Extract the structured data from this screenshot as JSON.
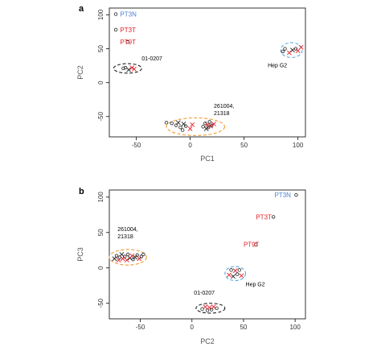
{
  "colors": {
    "black": "#222222",
    "red": "#e8202a",
    "blue": "#4a7fd4",
    "ellipse_black": "#222222",
    "ellipse_orange": "#f39a2e",
    "ellipse_blue": "#5aa9e0"
  },
  "chart_data": [
    {
      "panel": "a",
      "type": "scatter",
      "xlabel": "PC1",
      "ylabel": "PC2",
      "xlim": [
        -75,
        107
      ],
      "ylim": [
        -80,
        110
      ],
      "xticks": [
        -50,
        0,
        50,
        100
      ],
      "yticks": [
        -50,
        0,
        50,
        100
      ],
      "labels": [
        {
          "text": "PT3N",
          "x": -65,
          "y": 101,
          "color": "blue"
        },
        {
          "text": "PT3T",
          "x": -65,
          "y": 78,
          "color": "red"
        },
        {
          "text": "PT9T",
          "x": -65,
          "y": 60,
          "color": "red"
        }
      ],
      "annotations": [
        {
          "lines": [
            "01-0207"
          ],
          "x": -45,
          "y": 33
        },
        {
          "lines": [
            "261004,",
            "21318"
          ],
          "x": 22,
          "y": -37
        },
        {
          "lines": [
            "Hep G2"
          ],
          "x": 72,
          "y": 23
        }
      ],
      "ellipses": [
        {
          "cx": -58,
          "cy": 21,
          "rx": 13,
          "ry": 7,
          "color": "ellipse_black"
        },
        {
          "cx": 5,
          "cy": -65,
          "rx": 27,
          "ry": 13,
          "color": "ellipse_orange"
        },
        {
          "cx": 94,
          "cy": 48,
          "rx": 10,
          "ry": 11,
          "color": "ellipse_blue"
        }
      ],
      "points": [
        {
          "x": -69,
          "y": 101,
          "m": "o",
          "c": "black"
        },
        {
          "x": -69,
          "y": 78,
          "m": "o",
          "c": "black"
        },
        {
          "x": -58,
          "y": 60,
          "m": "o",
          "c": "black"
        },
        {
          "x": -62,
          "y": 21,
          "m": "o",
          "c": "black"
        },
        {
          "x": -60,
          "y": 22,
          "m": "o",
          "c": "black"
        },
        {
          "x": -57,
          "y": 19,
          "m": "x",
          "c": "black"
        },
        {
          "x": -54,
          "y": 22,
          "m": "x",
          "c": "red"
        },
        {
          "x": -52,
          "y": 20,
          "m": "x",
          "c": "red"
        },
        {
          "x": -22,
          "y": -59,
          "m": "o",
          "c": "black"
        },
        {
          "x": -17,
          "y": -60,
          "m": "o",
          "c": "black"
        },
        {
          "x": -13,
          "y": -63,
          "m": "o",
          "c": "black"
        },
        {
          "x": -11,
          "y": -59,
          "m": "x",
          "c": "black"
        },
        {
          "x": -9,
          "y": -66,
          "m": "o",
          "c": "black"
        },
        {
          "x": -7,
          "y": -70,
          "m": "o",
          "c": "black"
        },
        {
          "x": -6,
          "y": -61,
          "m": "x",
          "c": "black"
        },
        {
          "x": -4,
          "y": -64,
          "m": "o",
          "c": "black"
        },
        {
          "x": 0,
          "y": -68,
          "m": "x",
          "c": "red"
        },
        {
          "x": 2,
          "y": -62,
          "m": "x",
          "c": "red"
        },
        {
          "x": 12,
          "y": -65,
          "m": "o",
          "c": "black"
        },
        {
          "x": 14,
          "y": -60,
          "m": "o",
          "c": "black"
        },
        {
          "x": 15,
          "y": -68,
          "m": "x",
          "c": "black"
        },
        {
          "x": 16,
          "y": -62,
          "m": "x",
          "c": "red"
        },
        {
          "x": 17,
          "y": -66,
          "m": "o",
          "c": "black"
        },
        {
          "x": 18,
          "y": -58,
          "m": "o",
          "c": "black"
        },
        {
          "x": 19,
          "y": -64,
          "m": "x",
          "c": "red"
        },
        {
          "x": 20,
          "y": -63,
          "m": "o",
          "c": "black"
        },
        {
          "x": 22,
          "y": -61,
          "m": "x",
          "c": "red"
        },
        {
          "x": 86,
          "y": 46,
          "m": "o",
          "c": "black"
        },
        {
          "x": 88,
          "y": 50,
          "m": "o",
          "c": "black"
        },
        {
          "x": 92,
          "y": 44,
          "m": "x",
          "c": "red"
        },
        {
          "x": 95,
          "y": 48,
          "m": "x",
          "c": "black"
        },
        {
          "x": 98,
          "y": 50,
          "m": "o",
          "c": "black"
        },
        {
          "x": 100,
          "y": 47,
          "m": "x",
          "c": "red"
        },
        {
          "x": 103,
          "y": 52,
          "m": "x",
          "c": "red"
        }
      ]
    },
    {
      "panel": "b",
      "type": "scatter",
      "xlabel": "PC2",
      "ylabel": "PC3",
      "xlim": [
        -80,
        110
      ],
      "ylim": [
        -72,
        110
      ],
      "xticks": [
        -50,
        0,
        50,
        100
      ],
      "yticks": [
        -50,
        0,
        50,
        100
      ],
      "labels": [
        {
          "text": "PT3N",
          "x": 80,
          "y": 103,
          "color": "blue"
        },
        {
          "text": "PT3T",
          "x": 62,
          "y": 72,
          "color": "red"
        },
        {
          "text": "PT9T",
          "x": 50,
          "y": 33,
          "color": "red"
        }
      ],
      "annotations": [
        {
          "lines": [
            "261004,",
            "21318"
          ],
          "x": -72,
          "y": 52
        },
        {
          "lines": [
            "01-0207"
          ],
          "x": 2,
          "y": -38
        },
        {
          "lines": [
            "Hep G2"
          ],
          "x": 52,
          "y": -26
        }
      ],
      "ellipses": [
        {
          "cx": -62,
          "cy": 15,
          "rx": 18,
          "ry": 11,
          "color": "ellipse_orange"
        },
        {
          "cx": 18,
          "cy": -57,
          "rx": 14,
          "ry": 7,
          "color": "ellipse_black"
        },
        {
          "cx": 42,
          "cy": -8,
          "rx": 10,
          "ry": 10,
          "color": "ellipse_blue"
        }
      ],
      "points": [
        {
          "x": 101,
          "y": 103,
          "m": "o",
          "c": "black"
        },
        {
          "x": 79,
          "y": 72,
          "m": "o",
          "c": "black"
        },
        {
          "x": 62,
          "y": 33,
          "m": "o",
          "c": "black"
        },
        {
          "x": -75,
          "y": 13,
          "m": "x",
          "c": "black"
        },
        {
          "x": -73,
          "y": 17,
          "m": "o",
          "c": "black"
        },
        {
          "x": -71,
          "y": 11,
          "m": "x",
          "c": "red"
        },
        {
          "x": -70,
          "y": 15,
          "m": "o",
          "c": "black"
        },
        {
          "x": -68,
          "y": 19,
          "m": "x",
          "c": "black"
        },
        {
          "x": -67,
          "y": 13,
          "m": "x",
          "c": "red"
        },
        {
          "x": -65,
          "y": 16,
          "m": "o",
          "c": "black"
        },
        {
          "x": -63,
          "y": 11,
          "m": "x",
          "c": "red"
        },
        {
          "x": -62,
          "y": 19,
          "m": "o",
          "c": "black"
        },
        {
          "x": -60,
          "y": 14,
          "m": "x",
          "c": "black"
        },
        {
          "x": -58,
          "y": 17,
          "m": "x",
          "c": "red"
        },
        {
          "x": -57,
          "y": 12,
          "m": "o",
          "c": "black"
        },
        {
          "x": -55,
          "y": 15,
          "m": "x",
          "c": "black"
        },
        {
          "x": -53,
          "y": 18,
          "m": "o",
          "c": "black"
        },
        {
          "x": -51,
          "y": 13,
          "m": "x",
          "c": "red"
        },
        {
          "x": -49,
          "y": 16,
          "m": "o",
          "c": "black"
        },
        {
          "x": -47,
          "y": 19,
          "m": "o",
          "c": "black"
        },
        {
          "x": 10,
          "y": -58,
          "m": "o",
          "c": "black"
        },
        {
          "x": 13,
          "y": -55,
          "m": "x",
          "c": "red"
        },
        {
          "x": 15,
          "y": -60,
          "m": "o",
          "c": "black"
        },
        {
          "x": 17,
          "y": -56,
          "m": "x",
          "c": "red"
        },
        {
          "x": 19,
          "y": -59,
          "m": "o",
          "c": "black"
        },
        {
          "x": 21,
          "y": -55,
          "m": "x",
          "c": "red"
        },
        {
          "x": 24,
          "y": -57,
          "m": "o",
          "c": "black"
        },
        {
          "x": 36,
          "y": -10,
          "m": "x",
          "c": "red"
        },
        {
          "x": 38,
          "y": -3,
          "m": "o",
          "c": "black"
        },
        {
          "x": 40,
          "y": -12,
          "m": "x",
          "c": "black"
        },
        {
          "x": 42,
          "y": -4,
          "m": "x",
          "c": "red"
        },
        {
          "x": 44,
          "y": -9,
          "m": "o",
          "c": "black"
        },
        {
          "x": 46,
          "y": -3,
          "m": "o",
          "c": "black"
        },
        {
          "x": 48,
          "y": -11,
          "m": "x",
          "c": "red"
        }
      ]
    }
  ]
}
